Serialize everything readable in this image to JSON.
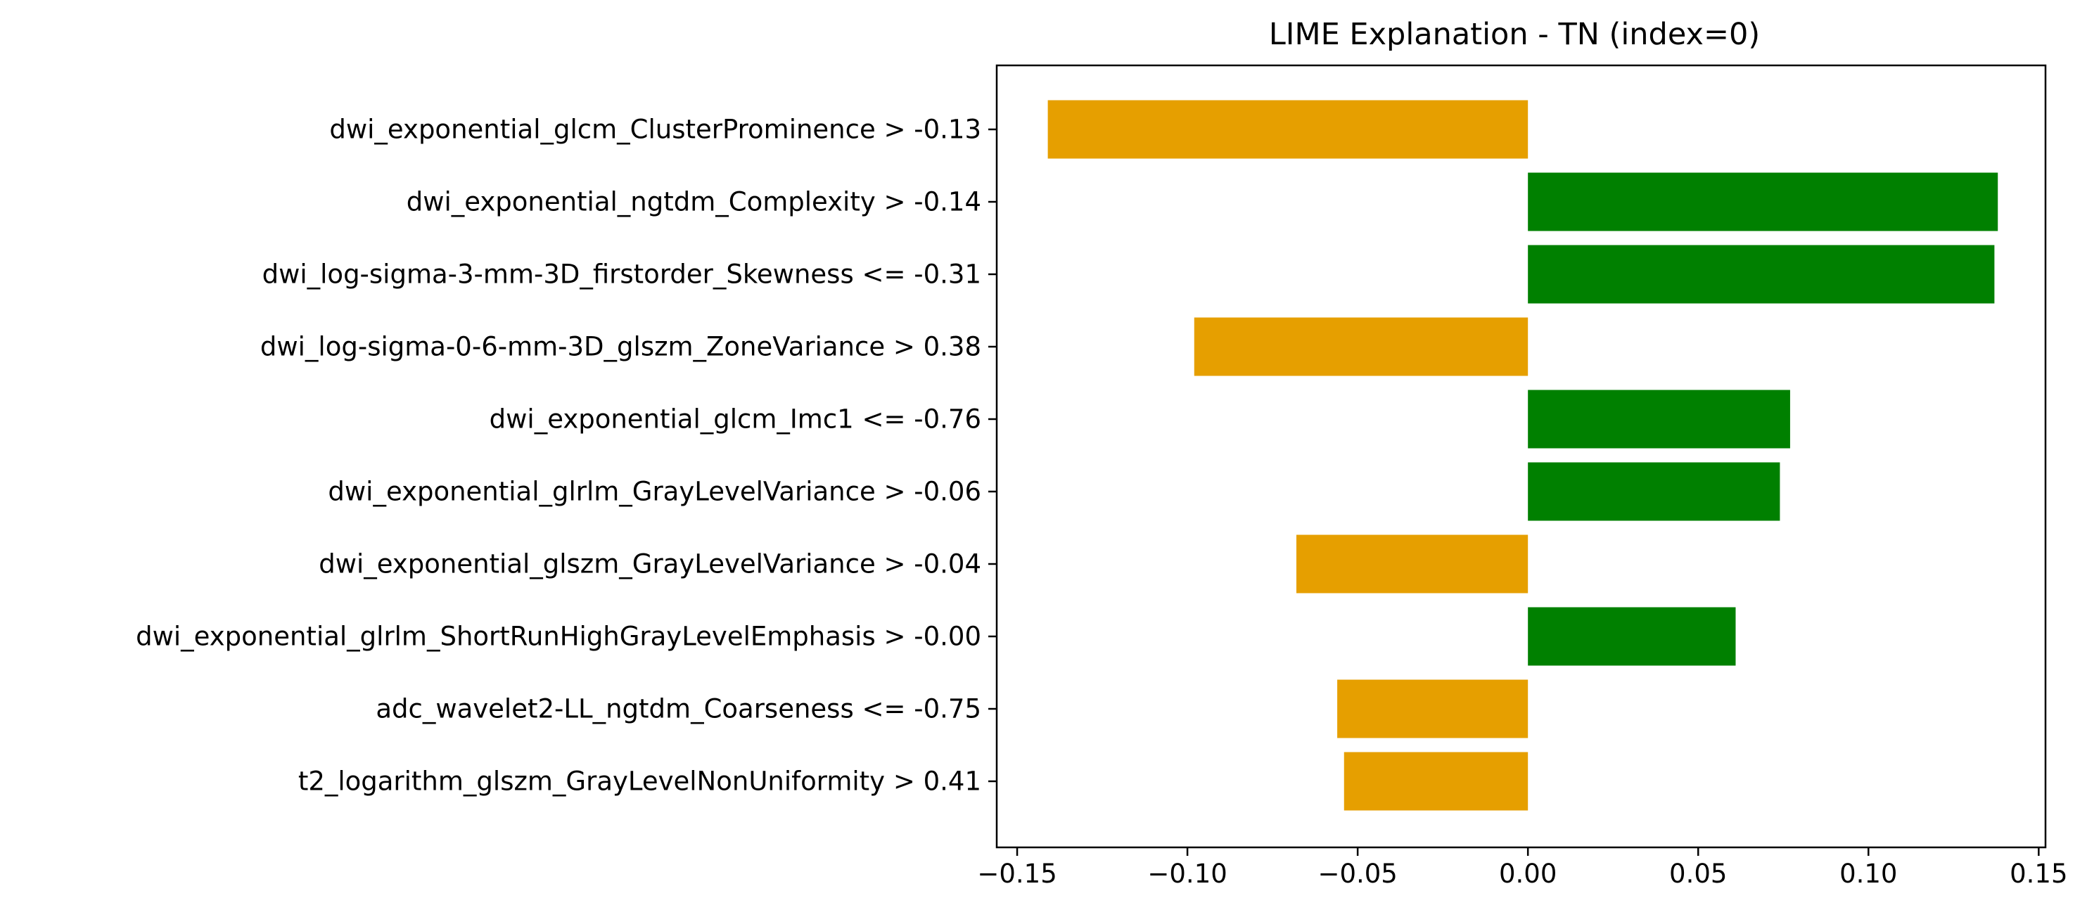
{
  "chart_data": {
    "type": "bar",
    "orientation": "horizontal",
    "title": "LIME Explanation - TN (index=0)",
    "xlabel": "",
    "ylabel": "",
    "xlim": [
      -0.156,
      0.152
    ],
    "x_ticks": [
      -0.15,
      -0.1,
      -0.05,
      0.0,
      0.05,
      0.1,
      0.15
    ],
    "x_tick_labels": [
      "−0.15",
      "−0.10",
      "−0.05",
      "0.00",
      "0.05",
      "0.10",
      "0.15"
    ],
    "grid": false,
    "legend": "none",
    "categories": [
      "dwi_exponential_glcm_ClusterProminence > -0.13",
      "dwi_exponential_ngtdm_Complexity > -0.14",
      "dwi_log-sigma-3-mm-3D_firstorder_Skewness <= -0.31",
      "dwi_log-sigma-0-6-mm-3D_glszm_ZoneVariance > 0.38",
      "dwi_exponential_glcm_Imc1 <= -0.76",
      "dwi_exponential_glrlm_GrayLevelVariance > -0.06",
      "dwi_exponential_glszm_GrayLevelVariance > -0.04",
      "dwi_exponential_glrlm_ShortRunHighGrayLevelEmphasis > -0.00",
      "adc_wavelet2-LL_ngtdm_Coarseness <= -0.75",
      "t2_logarithm_glszm_GrayLevelNonUniformity > 0.41"
    ],
    "values": [
      -0.141,
      0.138,
      0.137,
      -0.098,
      0.077,
      0.074,
      -0.068,
      0.061,
      -0.056,
      -0.054
    ],
    "colors": {
      "positive": "#008000",
      "negative": "#E69F00"
    }
  }
}
